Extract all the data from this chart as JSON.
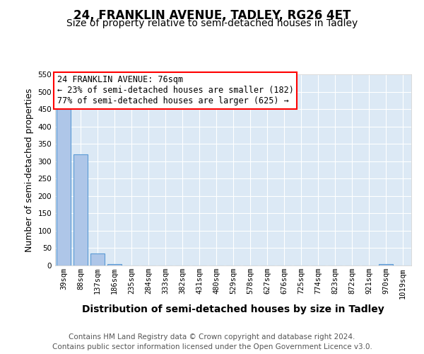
{
  "title": "24, FRANKLIN AVENUE, TADLEY, RG26 4ET",
  "subtitle": "Size of property relative to semi-detached houses in Tadley",
  "xlabel": "Distribution of semi-detached houses by size in Tadley",
  "ylabel": "Number of semi-detached properties",
  "categories": [
    "39sqm",
    "88sqm",
    "137sqm",
    "186sqm",
    "235sqm",
    "284sqm",
    "333sqm",
    "382sqm",
    "431sqm",
    "480sqm",
    "529sqm",
    "578sqm",
    "627sqm",
    "676sqm",
    "725sqm",
    "774sqm",
    "823sqm",
    "872sqm",
    "921sqm",
    "970sqm",
    "1019sqm"
  ],
  "values": [
    450,
    320,
    35,
    5,
    0,
    0,
    0,
    0,
    0,
    0,
    0,
    0,
    0,
    0,
    0,
    0,
    0,
    0,
    0,
    5,
    0
  ],
  "bar_color": "#aec6e8",
  "bar_edge_color": "#5b9bd5",
  "background_color": "#ffffff",
  "plot_bg_color": "#dce9f5",
  "grid_color": "#ffffff",
  "ylim": [
    0,
    550
  ],
  "yticks": [
    0,
    50,
    100,
    150,
    200,
    250,
    300,
    350,
    400,
    450,
    500,
    550
  ],
  "annotation_text": "24 FRANKLIN AVENUE: 76sqm\n← 23% of semi-detached houses are smaller (182)\n77% of semi-detached houses are larger (625) →",
  "footer_text": "Contains HM Land Registry data © Crown copyright and database right 2024.\nContains public sector information licensed under the Open Government Licence v3.0.",
  "title_fontsize": 12,
  "subtitle_fontsize": 10,
  "xlabel_fontsize": 10,
  "ylabel_fontsize": 9,
  "tick_fontsize": 7.5,
  "annotation_fontsize": 8.5,
  "footer_fontsize": 7.5
}
